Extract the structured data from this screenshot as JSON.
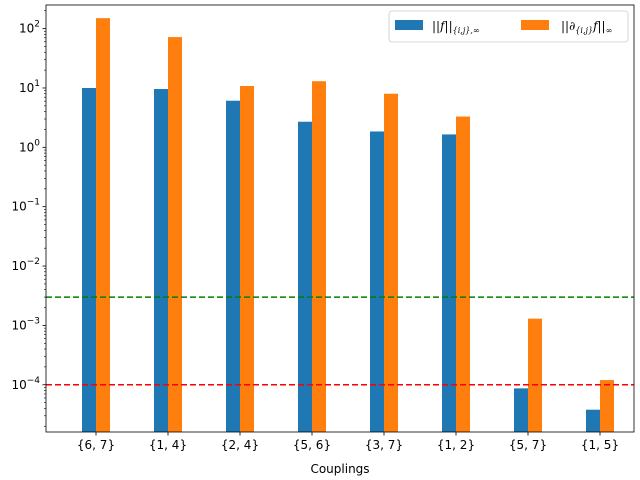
{
  "chart_data": {
    "type": "bar",
    "xlabel": "Couplings",
    "ylabel": "",
    "yscale": "log",
    "ylim": [
      1.6e-05,
      250
    ],
    "yticks": [
      {
        "value": 0.0001,
        "base": "10",
        "exp": "−4"
      },
      {
        "value": 0.001,
        "base": "10",
        "exp": "−3"
      },
      {
        "value": 0.01,
        "base": "10",
        "exp": "−2"
      },
      {
        "value": 0.1,
        "base": "10",
        "exp": "−1"
      },
      {
        "value": 1,
        "base": "10",
        "exp": "0"
      },
      {
        "value": 10,
        "base": "10",
        "exp": "1"
      },
      {
        "value": 100,
        "base": "10",
        "exp": "2"
      }
    ],
    "categories": [
      "{6, 7}",
      "{1, 4}",
      "{2, 4}",
      "{5, 6}",
      "{3, 7}",
      "{1, 2}",
      "{5, 7}",
      "{1, 5}"
    ],
    "series": [
      {
        "name": "||f||{i,j},∞",
        "color": "#1f77b4",
        "values": [
          10,
          9.6,
          6.1,
          2.7,
          1.85,
          1.65,
          8.7e-05,
          3.8e-05
        ]
      },
      {
        "name": "||∂{i,j}f||∞",
        "color": "#ff7f0e",
        "values": [
          150,
          72,
          10.8,
          13,
          8,
          3.3,
          0.0013,
          0.00012
        ]
      }
    ],
    "hlines": [
      {
        "value": 0.003,
        "color": "#008000",
        "style": "dashed"
      },
      {
        "value": 0.0001,
        "color": "#ff0000",
        "style": "dashed"
      }
    ],
    "legend_position": "top-right",
    "grid": false
  }
}
